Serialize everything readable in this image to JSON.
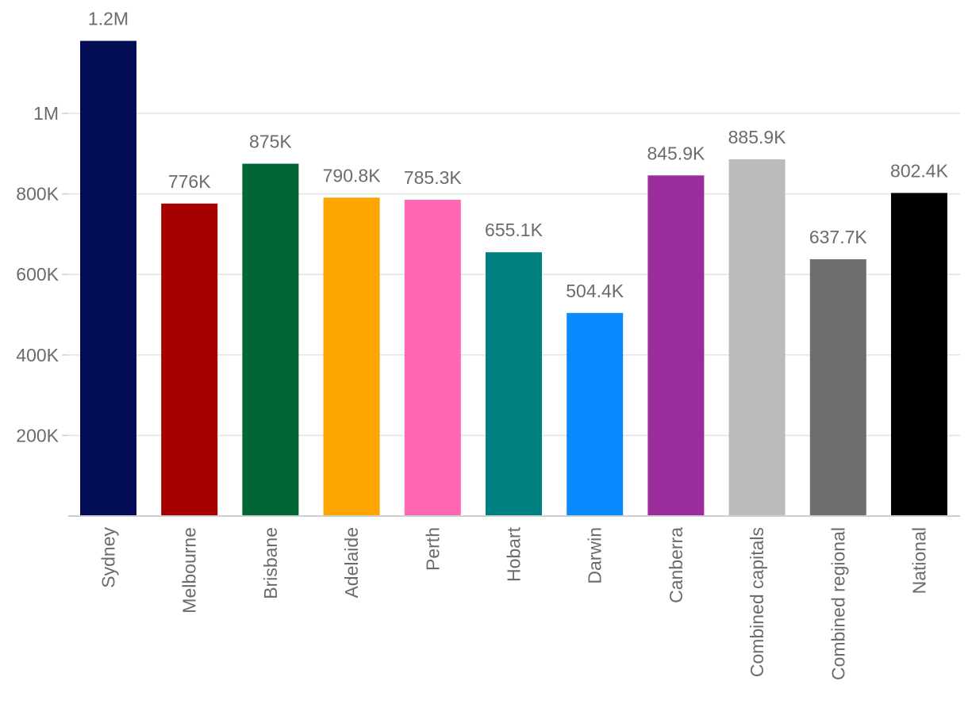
{
  "chart_data": {
    "type": "bar",
    "title": "",
    "xlabel": "",
    "ylabel": "",
    "ylim": [
      0,
      1180000
    ],
    "y_ticks": [
      200000,
      400000,
      600000,
      800000,
      1000000
    ],
    "y_tick_labels": [
      "200K",
      "400K",
      "600K",
      "800K",
      "1M"
    ],
    "grid": true,
    "categories": [
      "Sydney",
      "Melbourne",
      "Brisbane",
      "Adelaide",
      "Perth",
      "Hobart",
      "Darwin",
      "Canberra",
      "Combined capitals",
      "Combined regional",
      "National"
    ],
    "values": [
      1180000,
      776000,
      875000,
      790800,
      785300,
      655100,
      504400,
      845900,
      885900,
      637700,
      802400
    ],
    "data_labels": [
      "1.2M",
      "776K",
      "875K",
      "790.8K",
      "785.3K",
      "655.1K",
      "504.4K",
      "845.9K",
      "885.9K",
      "637.7K",
      "802.4K"
    ],
    "colors": [
      "#020D56",
      "#A50000",
      "#006633",
      "#FFA500",
      "#FF66B3",
      "#008080",
      "#0A8AFF",
      "#9B2C9B",
      "#BBBBBB",
      "#6E6E6E",
      "#000000"
    ]
  }
}
